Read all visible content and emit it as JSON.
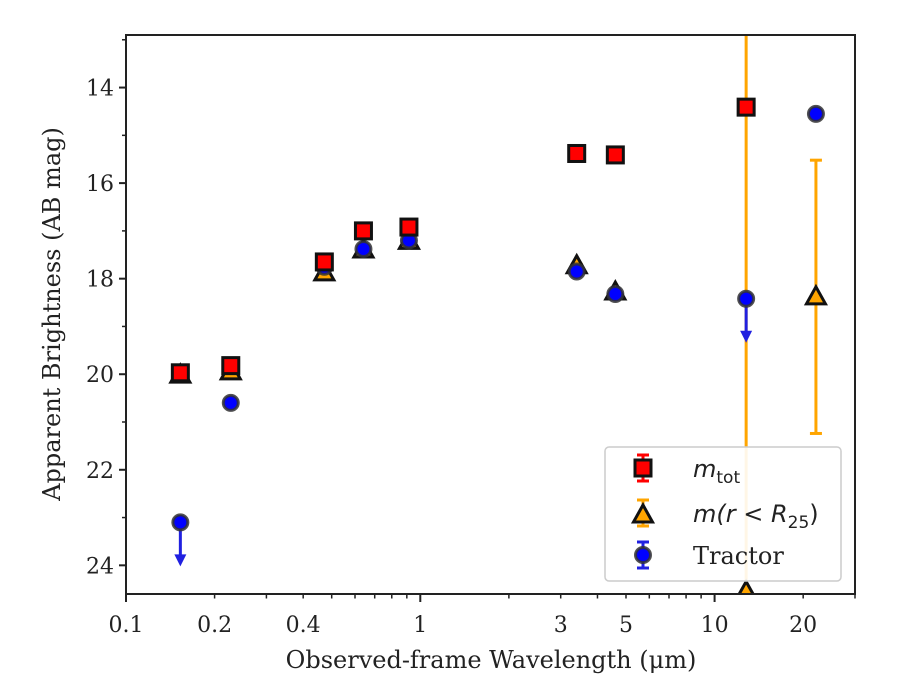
{
  "chart_data": {
    "type": "scatter",
    "title": "",
    "xlabel": "Observed-frame Wavelength (μm)",
    "ylabel": "Apparent Brightness (AB mag)",
    "xscale": "log",
    "xlim": [
      0.1,
      30
    ],
    "ylim": [
      24.6,
      12.9
    ],
    "y_inverted": true,
    "x_ticks": [
      0.1,
      0.2,
      0.4,
      1,
      3,
      5,
      10,
      20
    ],
    "x_tick_labels": [
      "0.1",
      "0.2",
      "0.4",
      "1",
      "3",
      "5",
      "10",
      "20"
    ],
    "y_ticks": [
      14,
      16,
      18,
      20,
      22,
      24
    ],
    "y_tick_labels": [
      "14",
      "16",
      "18",
      "20",
      "22",
      "24"
    ],
    "grid": false,
    "legend_position": "lower-right",
    "series": [
      {
        "name": "m_tot",
        "legend_label_main": "m",
        "legend_label_sub": "tot",
        "marker": "square",
        "color": "#ff0000",
        "edge_color": "#111111",
        "errorbar_color": "#ff0000",
        "points": [
          {
            "x": 0.153,
            "y": 19.97,
            "yerr": 0.05
          },
          {
            "x": 0.227,
            "y": 19.82,
            "yerr": 0.05
          },
          {
            "x": 0.472,
            "y": 17.65,
            "yerr": 0.03
          },
          {
            "x": 0.641,
            "y": 17.0,
            "yerr": 0.03
          },
          {
            "x": 0.915,
            "y": 16.92,
            "yerr": 0.03
          },
          {
            "x": 3.4,
            "y": 15.38,
            "yerr": 0.02
          },
          {
            "x": 4.6,
            "y": 15.41,
            "yerr": 0.02
          },
          {
            "x": 12.8,
            "y": 14.41,
            "yerr": 11.0,
            "errbar_color": "#ffa500"
          }
        ]
      },
      {
        "name": "m(r<R25)",
        "legend_label_main": "m(r < R",
        "legend_label_sub": "25",
        "legend_label_tail": ")",
        "marker": "triangle",
        "color": "#ffa500",
        "edge_color": "#111111",
        "errorbar_color": "#ffa500",
        "points": [
          {
            "x": 0.153,
            "y": 20.02,
            "yerr": 0.05
          },
          {
            "x": 0.227,
            "y": 19.95,
            "yerr": 0.05
          },
          {
            "x": 0.472,
            "y": 17.88,
            "yerr": 0.03
          },
          {
            "x": 0.641,
            "y": 17.4,
            "yerr": 0.03
          },
          {
            "x": 0.915,
            "y": 17.22,
            "yerr": 0.03
          },
          {
            "x": 3.4,
            "y": 17.73,
            "yerr": 0.03
          },
          {
            "x": 4.6,
            "y": 18.28,
            "yerr": 0.03
          },
          {
            "x": 12.8,
            "y": 24.55,
            "yerr": 0.0
          },
          {
            "x": 22.1,
            "y": 18.38,
            "yerr": 2.86
          }
        ]
      },
      {
        "name": "Tractor",
        "marker": "circle",
        "color": "#0000ff",
        "edge_color": "#333333",
        "errorbar_color": "#2020e0",
        "points": [
          {
            "x": 0.153,
            "y": 23.1,
            "upper_limit": true
          },
          {
            "x": 0.227,
            "y": 20.6,
            "yerr": 0.05
          },
          {
            "x": 0.472,
            "y": 17.75,
            "yerr": 0.03
          },
          {
            "x": 0.641,
            "y": 17.38,
            "yerr": 0.03
          },
          {
            "x": 0.915,
            "y": 17.2,
            "yerr": 0.03
          },
          {
            "x": 3.4,
            "y": 17.85,
            "yerr": 0.03
          },
          {
            "x": 4.6,
            "y": 18.32,
            "yerr": 0.03
          },
          {
            "x": 12.8,
            "y": 18.42,
            "upper_limit": true
          },
          {
            "x": 22.1,
            "y": 14.55,
            "yerr": 0.05
          }
        ]
      }
    ],
    "legend": {
      "entries": [
        {
          "series": "m_tot",
          "label_main": "m",
          "label_sub": "tot",
          "label_tail": ""
        },
        {
          "series": "m(r<R25)",
          "label_main": "m(r < R",
          "label_sub": "25",
          "label_tail": ")"
        },
        {
          "series": "Tractor",
          "label_main": "Tractor",
          "label_sub": "",
          "label_tail": ""
        }
      ]
    }
  }
}
